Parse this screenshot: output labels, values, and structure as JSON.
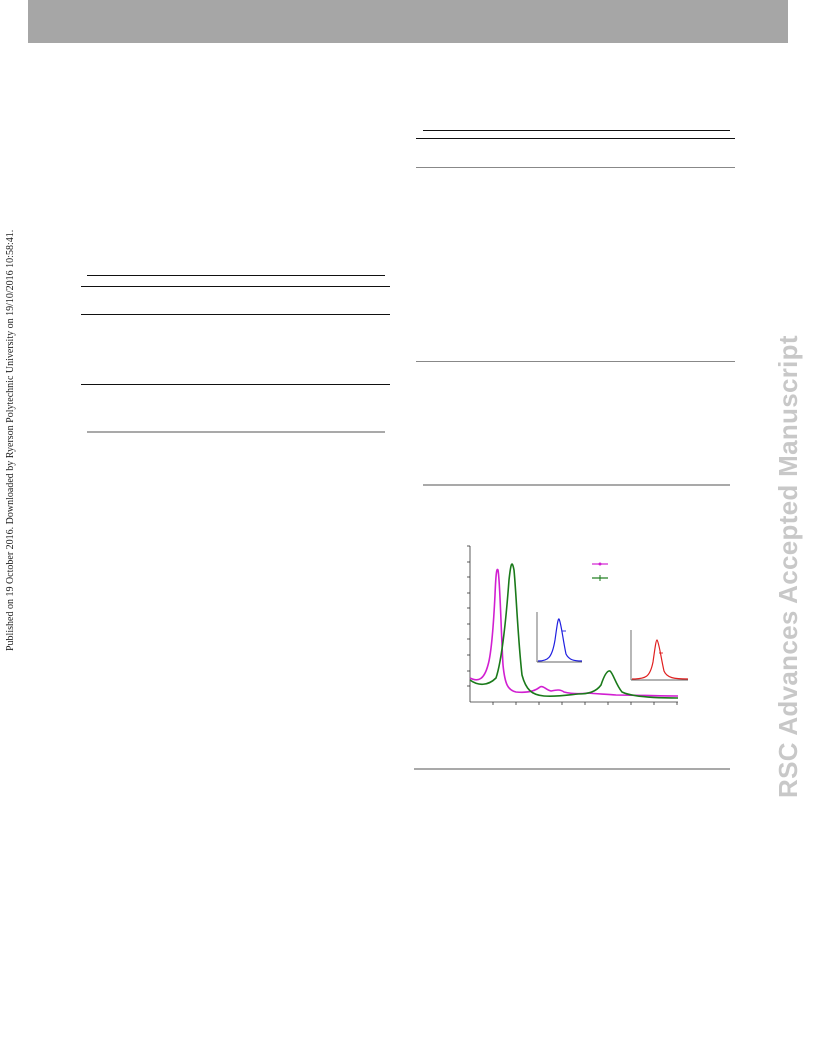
{
  "page": {
    "side_note": "Published on 19 October 2016. Downloaded by Ryerson Polytechnic University on 19/10/2016 10:58:41.",
    "watermark": "RSC Advances Accepted Manuscript"
  },
  "colors": {
    "header_bar": "#a6a6a6",
    "watermark": "#c8c8c8",
    "series_a": "#d11fd1",
    "series_b": "#1a7a1a",
    "inset_blue": "#2020e0",
    "inset_red": "#e02020"
  }
}
